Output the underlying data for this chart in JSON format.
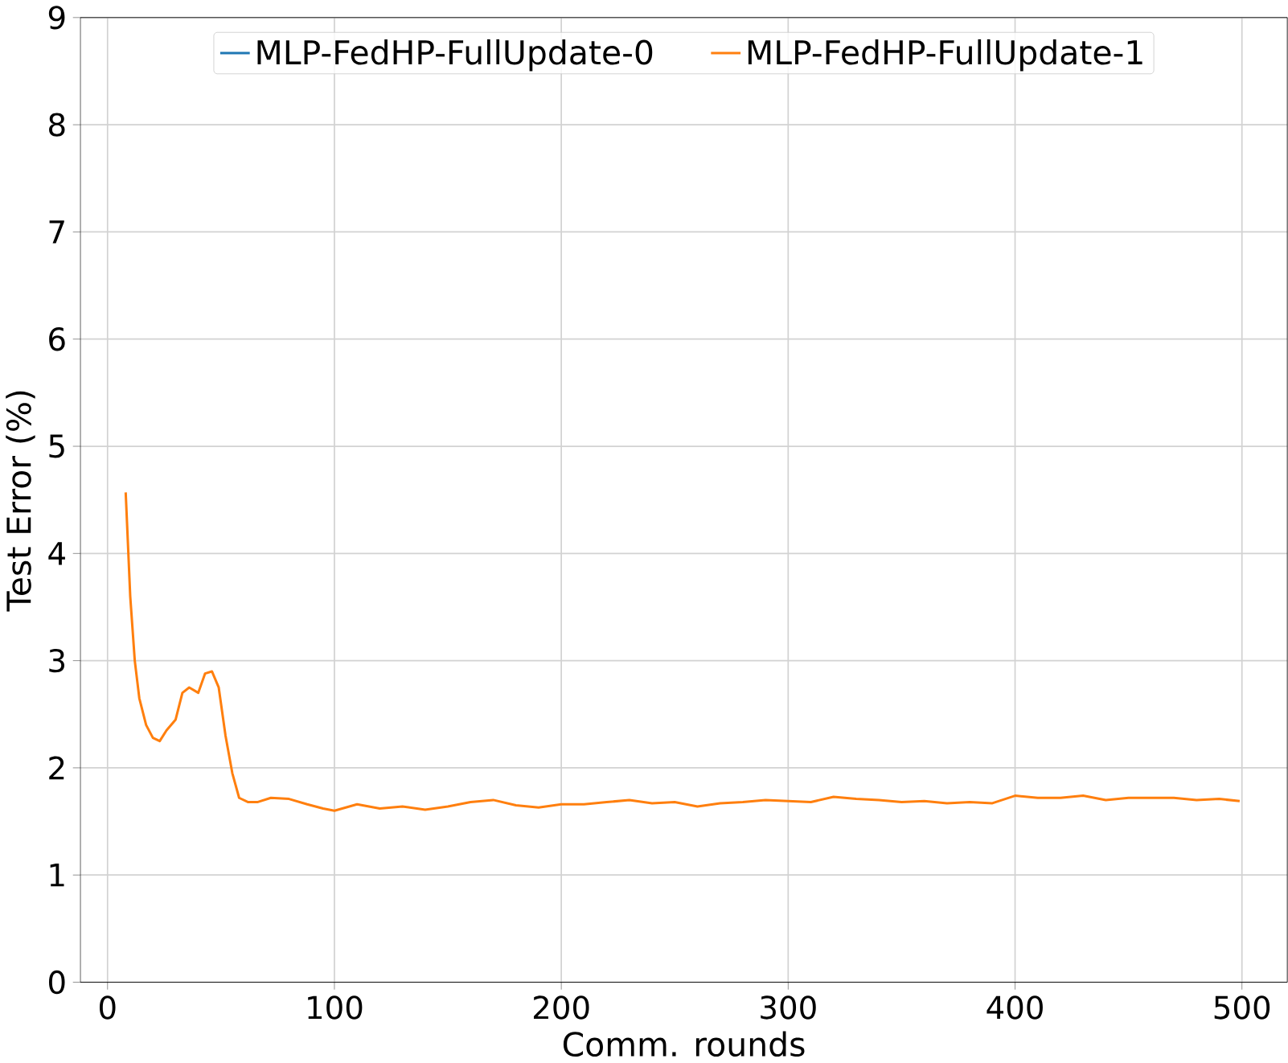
{
  "chart_data": {
    "type": "line",
    "xlabel": "Comm. rounds",
    "ylabel": "Test Error (%)",
    "x": [
      8,
      10,
      12,
      14,
      17,
      20,
      23,
      26,
      30,
      33,
      36,
      40,
      43,
      46,
      49,
      52,
      55,
      58,
      62,
      66,
      72,
      80,
      88,
      95,
      100,
      110,
      120,
      130,
      140,
      150,
      160,
      170,
      180,
      190,
      200,
      210,
      220,
      230,
      240,
      250,
      260,
      270,
      280,
      290,
      300,
      310,
      320,
      330,
      340,
      350,
      360,
      370,
      380,
      390,
      400,
      410,
      420,
      430,
      440,
      450,
      460,
      470,
      480,
      490,
      499
    ],
    "series": [
      {
        "name": "MLP-FedHP-FullUpdate-0",
        "color": "#1f77b4",
        "values": [
          null,
          null,
          null,
          null,
          null,
          null,
          null,
          null,
          null,
          null,
          null,
          null,
          null,
          null,
          null,
          null,
          null,
          null,
          null,
          null,
          null,
          null,
          null,
          null,
          null,
          null,
          null,
          null,
          null,
          null,
          null,
          null,
          null,
          null,
          null,
          null,
          null,
          null,
          null,
          null,
          null,
          null,
          null,
          null,
          null,
          null,
          null,
          null,
          null,
          null,
          null,
          null,
          null,
          null,
          null,
          null,
          null,
          null,
          null,
          null,
          null,
          null,
          null,
          null,
          null
        ]
      },
      {
        "name": "MLP-FedHP-FullUpdate-1",
        "color": "#ff7f0e",
        "values": [
          4.57,
          3.6,
          3.0,
          2.65,
          2.4,
          2.28,
          2.25,
          2.35,
          2.45,
          2.7,
          2.75,
          2.7,
          2.88,
          2.9,
          2.75,
          2.3,
          1.95,
          1.72,
          1.68,
          1.68,
          1.72,
          1.71,
          1.66,
          1.62,
          1.6,
          1.66,
          1.62,
          1.64,
          1.61,
          1.64,
          1.68,
          1.7,
          1.65,
          1.63,
          1.66,
          1.66,
          1.68,
          1.7,
          1.67,
          1.68,
          1.64,
          1.67,
          1.68,
          1.7,
          1.69,
          1.68,
          1.73,
          1.71,
          1.7,
          1.68,
          1.69,
          1.67,
          1.68,
          1.67,
          1.74,
          1.72,
          1.72,
          1.74,
          1.7,
          1.72,
          1.72,
          1.72,
          1.7,
          1.71,
          1.69
        ]
      }
    ],
    "xlim": [
      -12,
      520
    ],
    "ylim": [
      0,
      9
    ],
    "xticks": [
      0,
      100,
      200,
      300,
      400,
      500
    ],
    "yticks": [
      0,
      1,
      2,
      3,
      4,
      5,
      6,
      7,
      8,
      9
    ],
    "grid": true,
    "legend": "top"
  }
}
